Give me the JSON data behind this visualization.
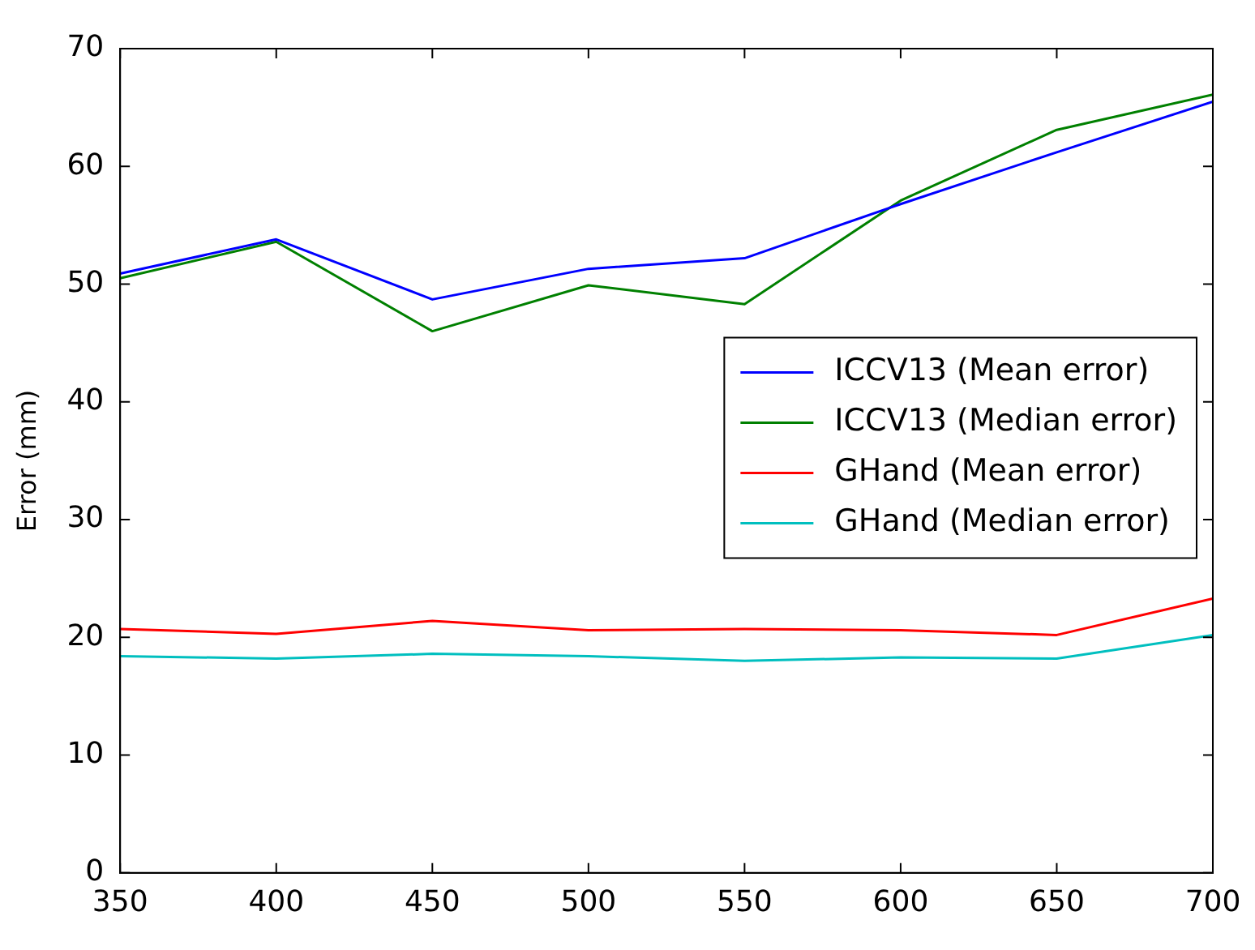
{
  "chart_data": {
    "type": "line",
    "ylabel": "Error (mm)",
    "x": [
      350,
      400,
      450,
      500,
      550,
      600,
      650,
      700
    ],
    "xlim": [
      350,
      700
    ],
    "xticks": [
      350,
      400,
      450,
      500,
      550,
      600,
      650,
      700
    ],
    "ylim": [
      0,
      70
    ],
    "yticks": [
      0,
      10,
      20,
      30,
      40,
      50,
      60,
      70
    ],
    "grid": false,
    "legend": "right",
    "marker": "none",
    "line_style": "solid",
    "series": [
      {
        "name": "ICCV13 (Mean error)",
        "color": "#0000ff",
        "values": [
          50.9,
          53.8,
          48.7,
          51.3,
          52.2,
          56.8,
          61.2,
          65.5
        ]
      },
      {
        "name": "ICCV13 (Median error)",
        "color": "#008000",
        "values": [
          50.5,
          53.6,
          46.0,
          49.9,
          48.3,
          57.1,
          63.1,
          66.1
        ]
      },
      {
        "name": "GHand (Mean error)",
        "color": "#ff0000",
        "values": [
          20.7,
          20.3,
          21.4,
          20.6,
          20.7,
          20.6,
          20.2,
          23.3
        ]
      },
      {
        "name": "GHand (Median error)",
        "color": "#00bfbf",
        "values": [
          18.4,
          18.2,
          18.6,
          18.4,
          18.0,
          18.3,
          18.2,
          20.2
        ]
      }
    ]
  }
}
